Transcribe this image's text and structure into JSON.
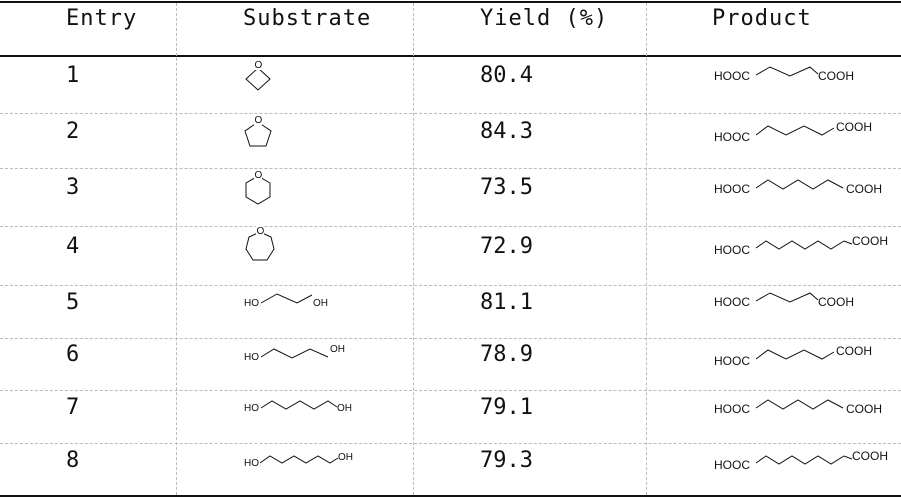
{
  "table": {
    "headers": {
      "entry": "Entry",
      "substrate": "Substrate",
      "yield": "Yield (%)",
      "product": "Product"
    },
    "rows": [
      {
        "entry": "1",
        "substrate_icon": "oxetane-icon",
        "yield": "80.4",
        "product": {
          "left": "HOOC",
          "right": "COOH"
        }
      },
      {
        "entry": "2",
        "substrate_icon": "tetrahydrofuran-icon",
        "yield": "84.3",
        "product": {
          "left": "HOOC",
          "right": "COOH"
        }
      },
      {
        "entry": "3",
        "substrate_icon": "tetrahydropyran-icon",
        "yield": "73.5",
        "product": {
          "left": "HOOC",
          "right": "COOH"
        }
      },
      {
        "entry": "4",
        "substrate_icon": "oxepane-icon",
        "yield": "72.9",
        "product": {
          "left": "HOOC",
          "right": "COOH"
        }
      },
      {
        "entry": "5",
        "substrate": {
          "left": "HO",
          "right": "OH"
        },
        "yield": "81.1",
        "product": {
          "left": "HOOC",
          "right": "COOH"
        }
      },
      {
        "entry": "6",
        "substrate": {
          "left": "HO",
          "right": "OH"
        },
        "yield": "78.9",
        "product": {
          "left": "HOOC",
          "right": "COOH"
        }
      },
      {
        "entry": "7",
        "substrate": {
          "left": "HO",
          "right": "OH"
        },
        "yield": "79.1",
        "product": {
          "left": "HOOC",
          "right": "COOH"
        }
      },
      {
        "entry": "8",
        "substrate": {
          "left": "HO",
          "right": "OH"
        },
        "yield": "79.3",
        "product": {
          "left": "HOOC",
          "right": "COOH"
        }
      }
    ],
    "ring_atom": "O"
  }
}
